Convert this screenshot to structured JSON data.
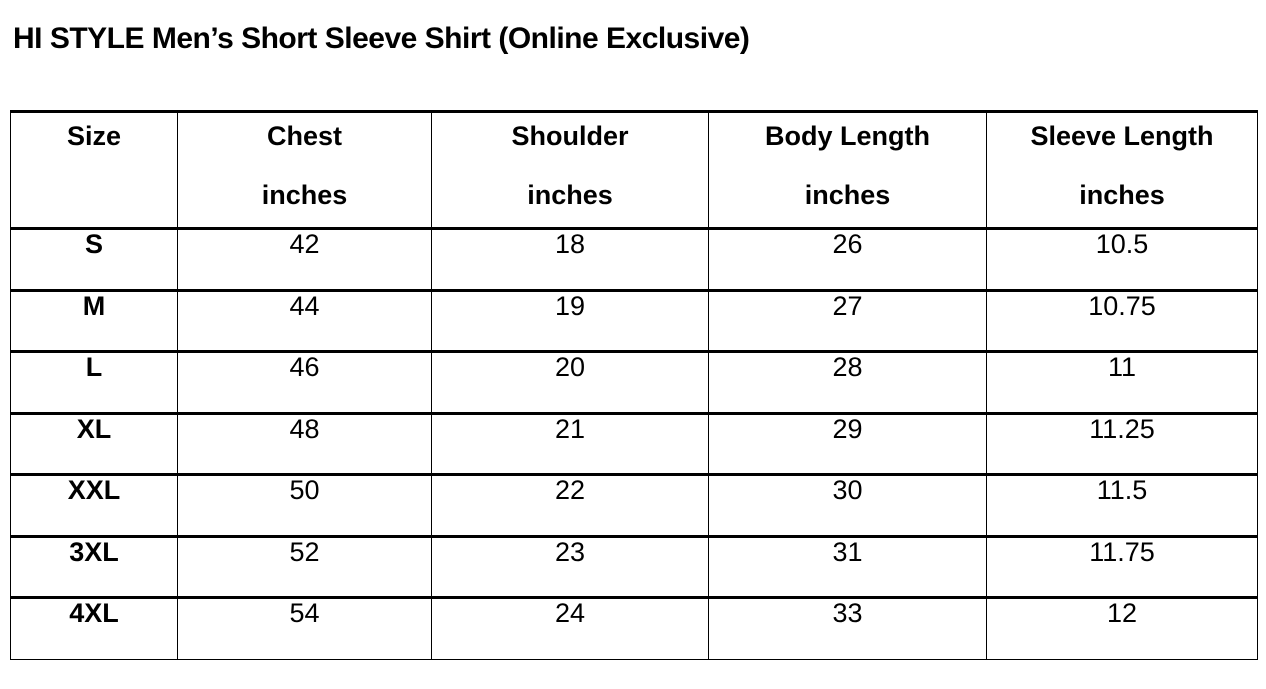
{
  "page": {
    "title": "HI STYLE Men’s Short Sleeve Shirt (Online Exclusive)",
    "background_color": "#ffffff",
    "text_color": "#000000"
  },
  "size_chart": {
    "columns": [
      {
        "label": "Size",
        "unit": ""
      },
      {
        "label": "Chest",
        "unit": "inches"
      },
      {
        "label": "Shoulder",
        "unit": "inches"
      },
      {
        "label": "Body Length",
        "unit": "inches"
      },
      {
        "label": "Sleeve Length",
        "unit": "inches"
      }
    ],
    "rows": [
      {
        "size": "S",
        "chest": "42",
        "shoulder": "18",
        "body_length": "26",
        "sleeve_length": "10.5"
      },
      {
        "size": "M",
        "chest": "44",
        "shoulder": "19",
        "body_length": "27",
        "sleeve_length": "10.75"
      },
      {
        "size": "L",
        "chest": "46",
        "shoulder": "20",
        "body_length": "28",
        "sleeve_length": "11"
      },
      {
        "size": "XL",
        "chest": "48",
        "shoulder": "21",
        "body_length": "29",
        "sleeve_length": "11.25"
      },
      {
        "size": "XXL",
        "chest": "50",
        "shoulder": "22",
        "body_length": "30",
        "sleeve_length": "11.5"
      },
      {
        "size": "3XL",
        "chest": "52",
        "shoulder": "23",
        "body_length": "31",
        "sleeve_length": "11.75"
      },
      {
        "size": "4XL",
        "chest": "54",
        "shoulder": "24",
        "body_length": "33",
        "sleeve_length": "12"
      }
    ]
  },
  "chart_data": {
    "type": "table",
    "title": "HI STYLE Men’s Short Sleeve Shirt (Online Exclusive)",
    "columns": [
      "Size",
      "Chest inches",
      "Shoulder inches",
      "Body Length inches",
      "Sleeve Length inches"
    ],
    "rows": [
      [
        "S",
        42,
        18,
        26,
        10.5
      ],
      [
        "M",
        44,
        19,
        27,
        10.75
      ],
      [
        "L",
        46,
        20,
        28,
        11
      ],
      [
        "XL",
        48,
        21,
        29,
        11.25
      ],
      [
        "XXL",
        50,
        22,
        30,
        11.5
      ],
      [
        "3XL",
        52,
        23,
        31,
        11.75
      ],
      [
        "4XL",
        54,
        24,
        33,
        12
      ]
    ]
  }
}
